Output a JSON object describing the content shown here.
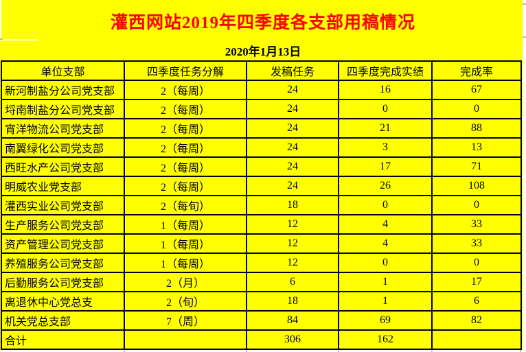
{
  "page": {
    "title": "灌西网站2019年四季度各支部用稿情况",
    "date": "2020年1月13日"
  },
  "table": {
    "columns": [
      "单位支部",
      "四季度任务分解",
      "发稿任务",
      "四季度完成实绩",
      "完成率"
    ],
    "rows": [
      [
        "新河制盐分公司党支部",
        "2（每周）",
        "24",
        "16",
        "67"
      ],
      [
        "埒南制盐分公司党支部",
        "2（每周）",
        "24",
        "0",
        "0"
      ],
      [
        "宵洋物流公司党支部",
        "2（每周）",
        "24",
        "21",
        "88"
      ],
      [
        "南翼绿化公司党支部",
        "2（每周）",
        "24",
        "3",
        "13"
      ],
      [
        "西旺水产公司党支部",
        "2（每周）",
        "24",
        "17",
        "71"
      ],
      [
        "明威农业党支部",
        "2（每周）",
        "24",
        "26",
        "108"
      ],
      [
        "灌西实业公司党支部",
        "2（每旬）",
        "18",
        "0",
        "0"
      ],
      [
        "生产服务公司党支部",
        "1（每周）",
        "12",
        "4",
        "33"
      ],
      [
        "资产管理公司党支部",
        "1（每周）",
        "12",
        "4",
        "33"
      ],
      [
        "养殖服务公司党支部",
        "1（每周）",
        "12",
        "0",
        "0"
      ],
      [
        "后勤服务公司党支部",
        "2（月）",
        "6",
        "1",
        "17"
      ],
      [
        "离退休中心党总支",
        "2（旬）",
        "18",
        "1",
        "6"
      ],
      [
        "机关党总支部",
        "7（周）",
        "84",
        "69",
        "82"
      ],
      [
        "合计",
        "",
        "306",
        "162",
        ""
      ]
    ]
  },
  "colors": {
    "background": "#FFFF00",
    "title_text": "#FF0000",
    "body_text": "#000000",
    "border": "#000000",
    "margin": "#FFFFFF"
  }
}
